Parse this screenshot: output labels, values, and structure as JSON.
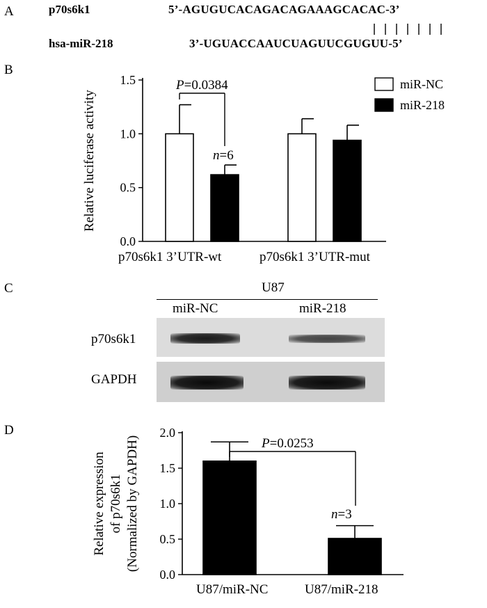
{
  "panel_a": {
    "letter": "A",
    "gene_label": "p70s6k1",
    "gene_seq": "5’-AGUGUCACAGACAGAAAGCACAC-3’",
    "mirna_label": "hsa-miR-218",
    "mirna_seq": "3’-UGUACCAAUCUAGUUCGUGUU-5’",
    "pairing_lines": 7
  },
  "panel_b": {
    "letter": "B"
  },
  "panel_c": {
    "letter": "C",
    "cell_line": "U87",
    "lane_labels": [
      "miR-NC",
      "miR-218"
    ],
    "row_labels": [
      "p70s6k1",
      "GAPDH"
    ]
  },
  "panel_d": {
    "letter": "D"
  },
  "chart_data": [
    {
      "type": "bar",
      "panel": "B",
      "ylabel": "Relative luciferase activity",
      "ylim": [
        0,
        1.5
      ],
      "yticks": [
        "0.0",
        "0.5",
        "1.0",
        "1.5"
      ],
      "groups": [
        "p70s6k1 3’UTR-wt",
        "p70s6k1 3’UTR-mut"
      ],
      "series": [
        {
          "name": "miR-NC",
          "color": "#ffffff",
          "values": [
            1.0,
            1.0
          ],
          "errors": [
            0.27,
            0.14
          ]
        },
        {
          "name": "miR-218",
          "color": "#000000",
          "values": [
            0.62,
            0.94
          ],
          "errors": [
            0.09,
            0.14
          ]
        }
      ],
      "legend": "top-right",
      "annotations": {
        "p_prefix": "P",
        "p_value": "=0.0384",
        "n_prefix": "n",
        "n_value": "=6"
      }
    },
    {
      "type": "bar",
      "panel": "D",
      "ylabel_lines": [
        "Relative expression",
        "of p70s6k1",
        "(Normalized by GAPDH)"
      ],
      "ylim": [
        0,
        2.0
      ],
      "yticks": [
        "0.0",
        "0.5",
        "1.0",
        "1.5",
        "2.0"
      ],
      "categories": [
        "U87/miR-NC",
        "U87/miR-218"
      ],
      "values": [
        1.6,
        0.51
      ],
      "errors": [
        0.27,
        0.18
      ],
      "color": "#000000",
      "annotations": {
        "p_prefix": "P",
        "p_value": "=0.0253",
        "n_prefix": "n",
        "n_value": "=3"
      }
    }
  ]
}
